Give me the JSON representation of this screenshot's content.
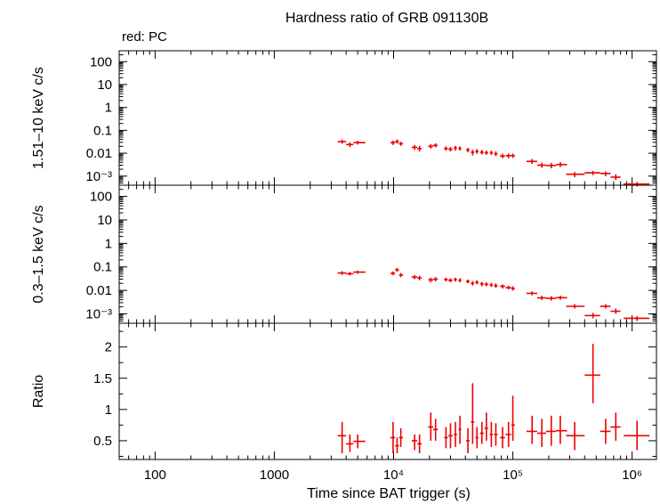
{
  "chart_data": {
    "type": "scatter",
    "title": "Hardness ratio of GRB 091130B",
    "legend": "red: PC",
    "color": "#ee0000",
    "xlabel": "Time since BAT trigger (s)",
    "xscale": "log",
    "xlim": [
      50,
      1600000
    ],
    "x_ticks": [
      {
        "value": 100,
        "label": "100"
      },
      {
        "value": 1000,
        "label": "1000"
      },
      {
        "value": 10000,
        "label": "10⁴"
      },
      {
        "value": 100000,
        "label": "10⁵"
      },
      {
        "value": 1000000,
        "label": "10⁶"
      }
    ],
    "panels": [
      {
        "name": "hard",
        "ylabel": "1.51–10 keV c/s",
        "yscale": "log",
        "ylim": [
          0.0004,
          300
        ],
        "y_ticks": [
          {
            "value": 100,
            "label": "100"
          },
          {
            "value": 10,
            "label": "10"
          },
          {
            "value": 1,
            "label": "1"
          },
          {
            "value": 0.1,
            "label": "0.1"
          },
          {
            "value": 0.01,
            "label": "0.01"
          },
          {
            "value": 0.001,
            "label": "10⁻³"
          }
        ],
        "points": [
          {
            "x": 3700,
            "xlo": 3400,
            "xhi": 4000,
            "y": 0.032,
            "ylo": 0.026,
            "yhi": 0.04
          },
          {
            "x": 4300,
            "xlo": 4000,
            "xhi": 4600,
            "y": 0.024,
            "ylo": 0.019,
            "yhi": 0.03
          },
          {
            "x": 5000,
            "xlo": 4600,
            "xhi": 5800,
            "y": 0.029,
            "ylo": 0.024,
            "yhi": 0.035
          },
          {
            "x": 9900,
            "xlo": 9400,
            "xhi": 10300,
            "y": 0.029,
            "ylo": 0.023,
            "yhi": 0.036
          },
          {
            "x": 10700,
            "xlo": 10300,
            "xhi": 11100,
            "y": 0.032,
            "ylo": 0.026,
            "yhi": 0.04
          },
          {
            "x": 11500,
            "xlo": 11100,
            "xhi": 12000,
            "y": 0.026,
            "ylo": 0.021,
            "yhi": 0.032
          },
          {
            "x": 15000,
            "xlo": 14200,
            "xhi": 15800,
            "y": 0.018,
            "ylo": 0.014,
            "yhi": 0.023
          },
          {
            "x": 16500,
            "xlo": 15800,
            "xhi": 17200,
            "y": 0.016,
            "ylo": 0.012,
            "yhi": 0.021
          },
          {
            "x": 20500,
            "xlo": 19500,
            "xhi": 21500,
            "y": 0.02,
            "ylo": 0.016,
            "yhi": 0.025
          },
          {
            "x": 22500,
            "xlo": 21500,
            "xhi": 23500,
            "y": 0.022,
            "ylo": 0.018,
            "yhi": 0.027
          },
          {
            "x": 27500,
            "xlo": 26500,
            "xhi": 28500,
            "y": 0.016,
            "ylo": 0.013,
            "yhi": 0.02
          },
          {
            "x": 30000,
            "xlo": 28800,
            "xhi": 31200,
            "y": 0.015,
            "ylo": 0.012,
            "yhi": 0.019
          },
          {
            "x": 33000,
            "xlo": 32000,
            "xhi": 34000,
            "y": 0.017,
            "ylo": 0.013,
            "yhi": 0.021
          },
          {
            "x": 36000,
            "xlo": 35000,
            "xhi": 37000,
            "y": 0.016,
            "ylo": 0.013,
            "yhi": 0.02
          },
          {
            "x": 42000,
            "xlo": 40500,
            "xhi": 43500,
            "y": 0.014,
            "ylo": 0.011,
            "yhi": 0.017
          },
          {
            "x": 46000,
            "xlo": 44500,
            "xhi": 47500,
            "y": 0.011,
            "ylo": 0.008,
            "yhi": 0.014
          },
          {
            "x": 50000,
            "xlo": 48500,
            "xhi": 51500,
            "y": 0.012,
            "ylo": 0.0095,
            "yhi": 0.015
          },
          {
            "x": 55000,
            "xlo": 53000,
            "xhi": 57000,
            "y": 0.011,
            "ylo": 0.0088,
            "yhi": 0.014
          },
          {
            "x": 60000,
            "xlo": 58000,
            "xhi": 62000,
            "y": 0.0105,
            "ylo": 0.0085,
            "yhi": 0.013
          },
          {
            "x": 66000,
            "xlo": 64000,
            "xhi": 68000,
            "y": 0.0105,
            "ylo": 0.0085,
            "yhi": 0.013
          },
          {
            "x": 72000,
            "xlo": 69500,
            "xhi": 74500,
            "y": 0.0095,
            "ylo": 0.0075,
            "yhi": 0.012
          },
          {
            "x": 82000,
            "xlo": 78000,
            "xhi": 86000,
            "y": 0.0075,
            "ylo": 0.006,
            "yhi": 0.0095
          },
          {
            "x": 92000,
            "xlo": 87000,
            "xhi": 97000,
            "y": 0.0078,
            "ylo": 0.006,
            "yhi": 0.0097
          },
          {
            "x": 100000,
            "xlo": 97000,
            "xhi": 104000,
            "y": 0.0078,
            "ylo": 0.0062,
            "yhi": 0.0097
          },
          {
            "x": 145000,
            "xlo": 130000,
            "xhi": 160000,
            "y": 0.0044,
            "ylo": 0.0034,
            "yhi": 0.0056
          },
          {
            "x": 175000,
            "xlo": 160000,
            "xhi": 190000,
            "y": 0.003,
            "ylo": 0.0023,
            "yhi": 0.0039
          },
          {
            "x": 210000,
            "xlo": 190000,
            "xhi": 230000,
            "y": 0.0029,
            "ylo": 0.0022,
            "yhi": 0.0038
          },
          {
            "x": 250000,
            "xlo": 230000,
            "xhi": 285000,
            "y": 0.0032,
            "ylo": 0.0025,
            "yhi": 0.0041
          },
          {
            "x": 330000,
            "xlo": 280000,
            "xhi": 400000,
            "y": 0.0012,
            "ylo": 0.0009,
            "yhi": 0.0015
          },
          {
            "x": 470000,
            "xlo": 400000,
            "xhi": 540000,
            "y": 0.0014,
            "ylo": 0.0011,
            "yhi": 0.0017
          },
          {
            "x": 600000,
            "xlo": 540000,
            "xhi": 660000,
            "y": 0.0013,
            "ylo": 0.001,
            "yhi": 0.0016
          },
          {
            "x": 730000,
            "xlo": 660000,
            "xhi": 800000,
            "y": 0.0009,
            "ylo": 0.00068,
            "yhi": 0.0012
          },
          {
            "x": 1100000,
            "xlo": 850000,
            "xhi": 1400000,
            "y": 0.00045,
            "ylo": 0.00035,
            "yhi": 0.00055
          }
        ]
      },
      {
        "name": "soft",
        "ylabel": "0.3–1.5 keV c/s",
        "yscale": "log",
        "ylim": [
          0.0004,
          300
        ],
        "y_ticks": [
          {
            "value": 100,
            "label": "100"
          },
          {
            "value": 10,
            "label": "10"
          },
          {
            "value": 1,
            "label": "1"
          },
          {
            "value": 0.1,
            "label": "0.1"
          },
          {
            "value": 0.01,
            "label": "0.01"
          },
          {
            "value": 0.001,
            "label": "10⁻³"
          }
        ],
        "points": [
          {
            "x": 3700,
            "xlo": 3400,
            "xhi": 4000,
            "y": 0.055,
            "ylo": 0.046,
            "yhi": 0.066
          },
          {
            "x": 4300,
            "xlo": 4000,
            "xhi": 4600,
            "y": 0.051,
            "ylo": 0.043,
            "yhi": 0.061
          },
          {
            "x": 5000,
            "xlo": 4600,
            "xhi": 5800,
            "y": 0.06,
            "ylo": 0.051,
            "yhi": 0.07
          },
          {
            "x": 9900,
            "xlo": 9400,
            "xhi": 10300,
            "y": 0.053,
            "ylo": 0.044,
            "yhi": 0.064
          },
          {
            "x": 10700,
            "xlo": 10300,
            "xhi": 11100,
            "y": 0.075,
            "ylo": 0.062,
            "yhi": 0.09
          },
          {
            "x": 11500,
            "xlo": 11100,
            "xhi": 12000,
            "y": 0.045,
            "ylo": 0.037,
            "yhi": 0.055
          },
          {
            "x": 15000,
            "xlo": 14200,
            "xhi": 15800,
            "y": 0.037,
            "ylo": 0.03,
            "yhi": 0.045
          },
          {
            "x": 16500,
            "xlo": 15800,
            "xhi": 17200,
            "y": 0.034,
            "ylo": 0.027,
            "yhi": 0.042
          },
          {
            "x": 20500,
            "xlo": 19500,
            "xhi": 21500,
            "y": 0.028,
            "ylo": 0.022,
            "yhi": 0.035
          },
          {
            "x": 22500,
            "xlo": 21500,
            "xhi": 23500,
            "y": 0.03,
            "ylo": 0.024,
            "yhi": 0.037
          },
          {
            "x": 27500,
            "xlo": 26500,
            "xhi": 28500,
            "y": 0.029,
            "ylo": 0.024,
            "yhi": 0.035
          },
          {
            "x": 30000,
            "xlo": 28800,
            "xhi": 31200,
            "y": 0.027,
            "ylo": 0.022,
            "yhi": 0.033
          },
          {
            "x": 33000,
            "xlo": 32000,
            "xhi": 34000,
            "y": 0.029,
            "ylo": 0.024,
            "yhi": 0.035
          },
          {
            "x": 36000,
            "xlo": 35000,
            "xhi": 37000,
            "y": 0.027,
            "ylo": 0.022,
            "yhi": 0.033
          },
          {
            "x": 42000,
            "xlo": 40500,
            "xhi": 43500,
            "y": 0.024,
            "ylo": 0.02,
            "yhi": 0.029
          },
          {
            "x": 46000,
            "xlo": 44500,
            "xhi": 47500,
            "y": 0.02,
            "ylo": 0.016,
            "yhi": 0.025
          },
          {
            "x": 50000,
            "xlo": 48500,
            "xhi": 51500,
            "y": 0.022,
            "ylo": 0.018,
            "yhi": 0.027
          },
          {
            "x": 55000,
            "xlo": 53000,
            "xhi": 57000,
            "y": 0.019,
            "ylo": 0.015,
            "yhi": 0.023
          },
          {
            "x": 60000,
            "xlo": 58000,
            "xhi": 62000,
            "y": 0.018,
            "ylo": 0.015,
            "yhi": 0.022
          },
          {
            "x": 66000,
            "xlo": 64000,
            "xhi": 68000,
            "y": 0.017,
            "ylo": 0.014,
            "yhi": 0.021
          },
          {
            "x": 72000,
            "xlo": 69500,
            "xhi": 74500,
            "y": 0.016,
            "ylo": 0.013,
            "yhi": 0.02
          },
          {
            "x": 82000,
            "xlo": 78000,
            "xhi": 86000,
            "y": 0.015,
            "ylo": 0.012,
            "yhi": 0.018
          },
          {
            "x": 92000,
            "xlo": 87000,
            "xhi": 97000,
            "y": 0.013,
            "ylo": 0.011,
            "yhi": 0.016
          },
          {
            "x": 100000,
            "xlo": 97000,
            "xhi": 104000,
            "y": 0.012,
            "ylo": 0.0098,
            "yhi": 0.015
          },
          {
            "x": 145000,
            "xlo": 130000,
            "xhi": 160000,
            "y": 0.0075,
            "ylo": 0.0062,
            "yhi": 0.009
          },
          {
            "x": 175000,
            "xlo": 160000,
            "xhi": 190000,
            "y": 0.0048,
            "ylo": 0.0039,
            "yhi": 0.0059
          },
          {
            "x": 210000,
            "xlo": 190000,
            "xhi": 230000,
            "y": 0.0046,
            "ylo": 0.0037,
            "yhi": 0.0057
          },
          {
            "x": 250000,
            "xlo": 230000,
            "xhi": 285000,
            "y": 0.0049,
            "ylo": 0.004,
            "yhi": 0.006
          },
          {
            "x": 330000,
            "xlo": 280000,
            "xhi": 400000,
            "y": 0.0021,
            "ylo": 0.0017,
            "yhi": 0.0026
          },
          {
            "x": 470000,
            "xlo": 400000,
            "xhi": 540000,
            "y": 0.00085,
            "ylo": 0.00065,
            "yhi": 0.0011
          },
          {
            "x": 600000,
            "xlo": 540000,
            "xhi": 660000,
            "y": 0.0021,
            "ylo": 0.0017,
            "yhi": 0.0026
          },
          {
            "x": 730000,
            "xlo": 660000,
            "xhi": 800000,
            "y": 0.0013,
            "ylo": 0.001,
            "yhi": 0.0017
          },
          {
            "x": 1100000,
            "xlo": 850000,
            "xhi": 1400000,
            "y": 0.00065,
            "ylo": 0.0005,
            "yhi": 0.0008
          }
        ]
      },
      {
        "name": "ratio",
        "ylabel": "Ratio",
        "yscale": "linear",
        "ylim": [
          0.2,
          2.38
        ],
        "y_ticks": [
          {
            "value": 2,
            "label": "2"
          },
          {
            "value": 1.5,
            "label": "1.5"
          },
          {
            "value": 1,
            "label": "1"
          },
          {
            "value": 0.5,
            "label": "0.5"
          }
        ],
        "points": [
          {
            "x": 3700,
            "xlo": 3400,
            "xhi": 4000,
            "y": 0.58,
            "ylo": 0.3,
            "yhi": 0.8
          },
          {
            "x": 4300,
            "xlo": 4000,
            "xhi": 4600,
            "y": 0.45,
            "ylo": 0.32,
            "yhi": 0.6
          },
          {
            "x": 5000,
            "xlo": 4600,
            "xhi": 5800,
            "y": 0.49,
            "ylo": 0.38,
            "yhi": 0.6
          },
          {
            "x": 9900,
            "xlo": 9400,
            "xhi": 10300,
            "y": 0.55,
            "ylo": 0.3,
            "yhi": 0.8
          },
          {
            "x": 10700,
            "xlo": 10300,
            "xhi": 11100,
            "y": 0.42,
            "ylo": 0.3,
            "yhi": 0.55
          },
          {
            "x": 11500,
            "xlo": 11100,
            "xhi": 12000,
            "y": 0.55,
            "ylo": 0.4,
            "yhi": 0.7
          },
          {
            "x": 15000,
            "xlo": 14200,
            "xhi": 15800,
            "y": 0.5,
            "ylo": 0.35,
            "yhi": 0.6
          },
          {
            "x": 16500,
            "xlo": 15800,
            "xhi": 17200,
            "y": 0.45,
            "ylo": 0.3,
            "yhi": 0.6
          },
          {
            "x": 20500,
            "xlo": 19500,
            "xhi": 21500,
            "y": 0.72,
            "ylo": 0.5,
            "yhi": 0.95
          },
          {
            "x": 22500,
            "xlo": 21500,
            "xhi": 23500,
            "y": 0.68,
            "ylo": 0.5,
            "yhi": 0.85
          },
          {
            "x": 27500,
            "xlo": 26500,
            "xhi": 28500,
            "y": 0.55,
            "ylo": 0.38,
            "yhi": 0.72
          },
          {
            "x": 30000,
            "xlo": 28800,
            "xhi": 31200,
            "y": 0.58,
            "ylo": 0.38,
            "yhi": 0.78
          },
          {
            "x": 33000,
            "xlo": 32000,
            "xhi": 34000,
            "y": 0.6,
            "ylo": 0.4,
            "yhi": 0.8
          },
          {
            "x": 36000,
            "xlo": 35000,
            "xhi": 37000,
            "y": 0.68,
            "ylo": 0.45,
            "yhi": 0.9
          },
          {
            "x": 42000,
            "xlo": 40500,
            "xhi": 43500,
            "y": 0.5,
            "ylo": 0.3,
            "yhi": 0.7
          },
          {
            "x": 46000,
            "xlo": 44500,
            "xhi": 47500,
            "y": 0.8,
            "ylo": 0.45,
            "yhi": 1.42
          },
          {
            "x": 50000,
            "xlo": 48500,
            "xhi": 51500,
            "y": 0.55,
            "ylo": 0.38,
            "yhi": 0.72
          },
          {
            "x": 55000,
            "xlo": 53000,
            "xhi": 57000,
            "y": 0.62,
            "ylo": 0.45,
            "yhi": 0.8
          },
          {
            "x": 60000,
            "xlo": 58000,
            "xhi": 62000,
            "y": 0.7,
            "ylo": 0.5,
            "yhi": 0.95
          },
          {
            "x": 66000,
            "xlo": 64000,
            "xhi": 68000,
            "y": 0.6,
            "ylo": 0.4,
            "yhi": 0.8
          },
          {
            "x": 72000,
            "xlo": 69500,
            "xhi": 74500,
            "y": 0.6,
            "ylo": 0.42,
            "yhi": 0.78
          },
          {
            "x": 82000,
            "xlo": 78000,
            "xhi": 86000,
            "y": 0.55,
            "ylo": 0.38,
            "yhi": 0.72
          },
          {
            "x": 92000,
            "xlo": 87000,
            "xhi": 97000,
            "y": 0.6,
            "ylo": 0.4,
            "yhi": 0.8
          },
          {
            "x": 100000,
            "xlo": 97000,
            "xhi": 104000,
            "y": 0.75,
            "ylo": 0.5,
            "yhi": 1.22
          },
          {
            "x": 145000,
            "xlo": 130000,
            "xhi": 160000,
            "y": 0.65,
            "ylo": 0.45,
            "yhi": 0.9
          },
          {
            "x": 175000,
            "xlo": 160000,
            "xhi": 190000,
            "y": 0.62,
            "ylo": 0.4,
            "yhi": 0.85
          },
          {
            "x": 210000,
            "xlo": 190000,
            "xhi": 230000,
            "y": 0.65,
            "ylo": 0.42,
            "yhi": 0.9
          },
          {
            "x": 250000,
            "xlo": 230000,
            "xhi": 285000,
            "y": 0.66,
            "ylo": 0.45,
            "yhi": 0.9
          },
          {
            "x": 330000,
            "xlo": 280000,
            "xhi": 400000,
            "y": 0.58,
            "ylo": 0.35,
            "yhi": 0.8
          },
          {
            "x": 470000,
            "xlo": 400000,
            "xhi": 540000,
            "y": 1.55,
            "ylo": 1.1,
            "yhi": 2.05
          },
          {
            "x": 600000,
            "xlo": 540000,
            "xhi": 660000,
            "y": 0.65,
            "ylo": 0.45,
            "yhi": 0.85
          },
          {
            "x": 730000,
            "xlo": 660000,
            "xhi": 800000,
            "y": 0.72,
            "ylo": 0.5,
            "yhi": 0.95
          },
          {
            "x": 1100000,
            "xlo": 850000,
            "xhi": 1400000,
            "y": 0.58,
            "ylo": 0.35,
            "yhi": 0.82
          }
        ]
      }
    ]
  }
}
